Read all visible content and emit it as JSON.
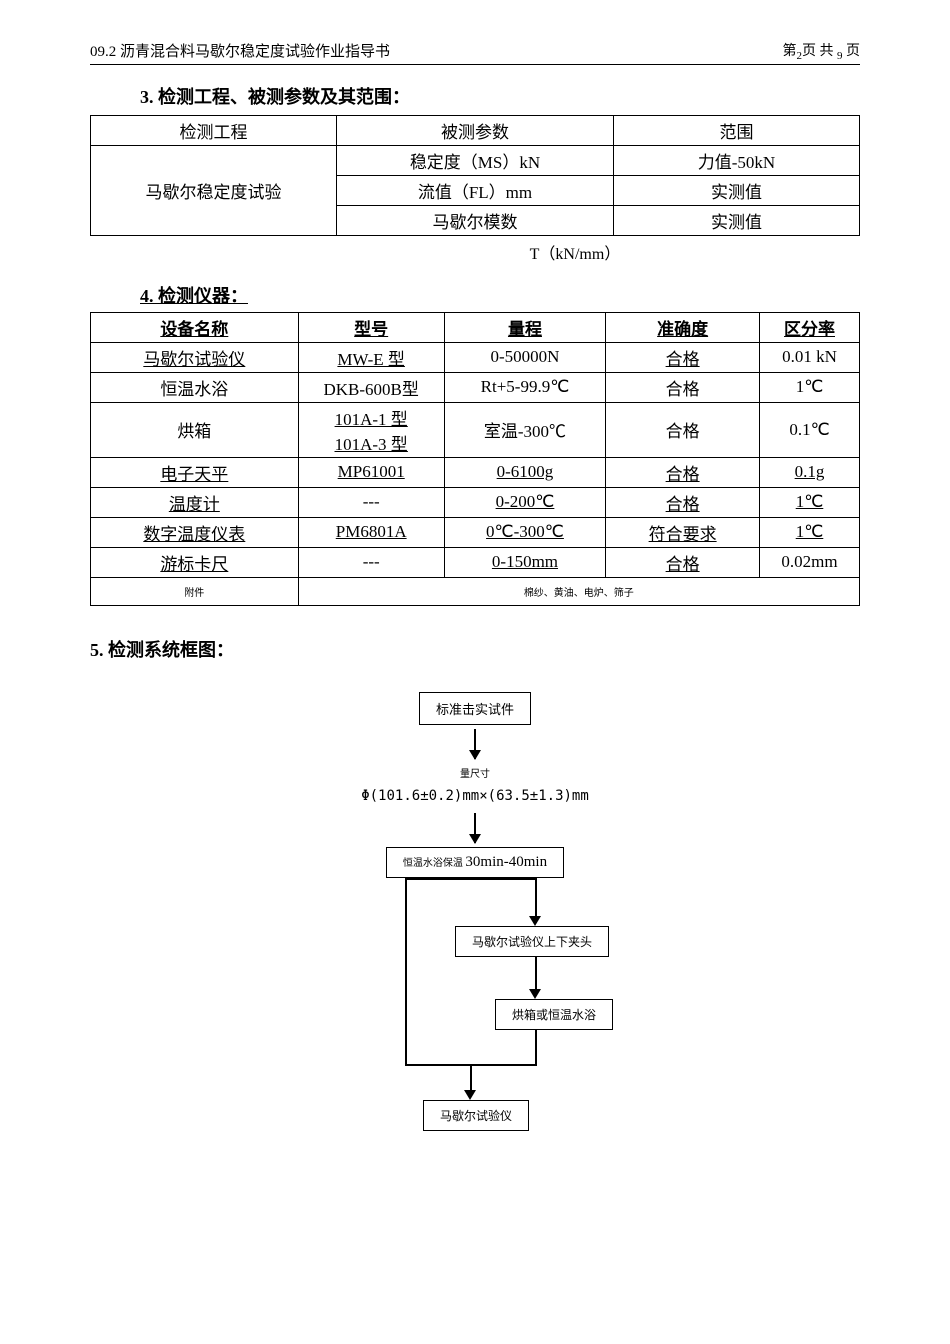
{
  "header": {
    "left": "09.2 沥青混合料马歇尔稳定度试验作业指导书",
    "right_prefix": "第",
    "right_page": "2",
    "right_mid": "页 共 ",
    "right_total": "9",
    "right_suffix": " 页"
  },
  "section3": {
    "title": "3. 检测工程、被测参数及其范围：",
    "headers": [
      "检测工程",
      "被测参数",
      "范围"
    ],
    "col1": "马歇尔稳定度试验",
    "rows": [
      [
        "稳定度（MS）kN",
        "力值-50kN"
      ],
      [
        "流值（FL）mm",
        "实测值"
      ],
      [
        "马歇尔模数",
        "实测值"
      ]
    ],
    "footer": "T（kN/mm）"
  },
  "section4": {
    "title": "4. 检测仪器：",
    "headers": [
      "设备名称",
      "型号",
      "量程",
      "准确度",
      "区分率"
    ],
    "rows": [
      {
        "c": [
          "马歇尔试验仪",
          "MW-E 型",
          "0-50000N",
          "合格",
          "0.01 kN"
        ],
        "ul": [
          true,
          true,
          false,
          true,
          false
        ]
      },
      {
        "c": [
          "恒温水浴",
          "DKB-600B型",
          "Rt+5-99.9℃",
          "合格",
          "1℃"
        ],
        "ul": [
          false,
          false,
          false,
          false,
          false
        ]
      },
      {
        "c": [
          "烘箱",
          "101A-1 型\n101A-3 型",
          "室温-300℃",
          "合格",
          "0.1℃"
        ],
        "ul": [
          false,
          true,
          false,
          false,
          false
        ],
        "multiline": true
      },
      {
        "c": [
          "电子天平",
          "MP61001",
          "0-6100g",
          "合格",
          "0.1g"
        ],
        "ul": [
          true,
          true,
          true,
          true,
          true
        ]
      },
      {
        "c": [
          "温度计",
          "---",
          "0-200℃",
          "合格",
          "1℃"
        ],
        "ul": [
          true,
          false,
          true,
          true,
          true
        ]
      },
      {
        "c": [
          "数字温度仪表",
          "PM6801A",
          "0℃-300℃",
          "符合要求",
          "1℃"
        ],
        "ul": [
          true,
          true,
          true,
          true,
          true
        ]
      },
      {
        "c": [
          "游标卡尺",
          "---",
          "0-150mm",
          "合格",
          "0.02mm"
        ],
        "ul": [
          true,
          false,
          true,
          true,
          false
        ]
      }
    ],
    "attachments_label": "附件",
    "attachments_value": "棉纱、黄油、电炉、筛子"
  },
  "section5": {
    "title": "5. 检测系统框图：",
    "flow": {
      "box1": "标准击实试件",
      "text1_line1": "量尺寸",
      "text1_line2": "Φ(101.6±0.2)mm×(63.5±1.3)mm",
      "box2_prefix": "恒温水浴保温 ",
      "box2_time": "30min-40min",
      "box3": "马歇尔试验仪上下夹头",
      "box4": "烘箱或恒温水浴",
      "box5": "马歇尔试验仪"
    }
  }
}
